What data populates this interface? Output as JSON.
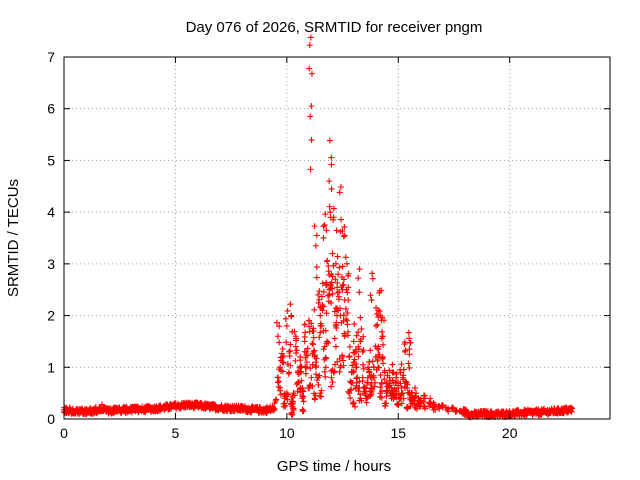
{
  "chart_data": {
    "type": "scatter",
    "title": "Day 076 of 2026, SRMTID for receiver pngm",
    "xlabel": "GPS time / hours",
    "ylabel": "SRMTID / TECUs",
    "xlim": [
      0,
      24.5
    ],
    "ylim": [
      0,
      7
    ],
    "x_ticks": [
      0,
      5,
      10,
      15,
      20
    ],
    "x_tick_labels": [
      "0",
      "5",
      "10",
      "15",
      "20"
    ],
    "y_ticks": [
      0,
      1,
      2,
      3,
      4,
      5,
      6,
      7
    ],
    "y_tick_labels": [
      "0",
      "1",
      "2",
      "3",
      "4",
      "5",
      "6",
      "7"
    ],
    "grid": true,
    "marker": "+",
    "series": [
      {
        "name": "pngm",
        "color": "#ff0000",
        "x": [
          0.0,
          0.1,
          0.2,
          0.3,
          0.4,
          0.5,
          0.6,
          0.7,
          0.8,
          1.0,
          1.2,
          1.4,
          1.6,
          1.7,
          1.8,
          2.0,
          2.2,
          2.4,
          2.6,
          2.8,
          3.0,
          3.2,
          3.4,
          3.6,
          3.8,
          4.0,
          4.2,
          4.4,
          4.6,
          4.8,
          5.0,
          5.2,
          5.4,
          5.6,
          5.8,
          6.0,
          6.2,
          6.4,
          6.6,
          6.8,
          7.0,
          7.2,
          7.4,
          7.6,
          7.8,
          8.0,
          8.2,
          8.4,
          8.6,
          8.8,
          9.0,
          9.2,
          9.4,
          9.5,
          9.6,
          9.7,
          9.8,
          9.9,
          10.0,
          10.1,
          10.2,
          10.3,
          10.4,
          10.5,
          10.6,
          10.7,
          10.8,
          10.9,
          11.0,
          11.05,
          11.1,
          11.15,
          11.2,
          11.3,
          11.4,
          11.5,
          11.6,
          11.7,
          11.8,
          11.9,
          12.0,
          12.05,
          12.1,
          12.2,
          12.3,
          12.4,
          12.5,
          12.6,
          12.7,
          12.8,
          12.9,
          13.0,
          13.1,
          13.2,
          13.3,
          13.4,
          13.5,
          13.6,
          13.7,
          13.8,
          13.9,
          14.0,
          14.1,
          14.2,
          14.3,
          14.4,
          14.5,
          14.6,
          14.7,
          14.8,
          14.9,
          15.0,
          15.1,
          15.2,
          15.3,
          15.4,
          15.5,
          15.6,
          15.7,
          15.8,
          15.9,
          16.0,
          16.2,
          16.4,
          16.6,
          16.8,
          17.0,
          17.2,
          17.4,
          17.6,
          17.8,
          18.4,
          18.6,
          18.8,
          19.0,
          19.2,
          19.4,
          19.6,
          19.8,
          20.0,
          20.2,
          20.4,
          20.6,
          20.8,
          21.0,
          21.2,
          21.4,
          21.6,
          21.8,
          22.0,
          22.2,
          22.4,
          22.6,
          22.8,
          9.6,
          9.8,
          10.0,
          10.2,
          10.4,
          10.6,
          10.8,
          11.0,
          11.2,
          11.4,
          11.6,
          11.8,
          12.0,
          12.2,
          12.4,
          12.6,
          12.8,
          13.0,
          13.2,
          13.4,
          13.6,
          13.8,
          14.0,
          14.2,
          14.4,
          14.6,
          14.8,
          15.0,
          15.2,
          15.4,
          15.6,
          15.8,
          16.0,
          16.2,
          16.4,
          16.6,
          9.7,
          9.9,
          10.1,
          10.3,
          10.5,
          10.7,
          10.9,
          11.1,
          11.3,
          11.5,
          11.7,
          11.9,
          12.1,
          12.3,
          12.5,
          12.7,
          12.9,
          13.1,
          13.3,
          13.5,
          13.7,
          13.9,
          14.1,
          14.3,
          14.5,
          14.7,
          14.9,
          15.1,
          15.3,
          15.5,
          10.25,
          10.75,
          11.25,
          11.75,
          12.25,
          12.75,
          13.25,
          13.75,
          14.25,
          14.75,
          11.5,
          11.8,
          12.0,
          12.2,
          12.5,
          13.1,
          14.1,
          15.5,
          13.8,
          12.6,
          10.2,
          11.3,
          14.3,
          11.9,
          12.4,
          10.6,
          13.0
        ],
        "y": [
          0.18,
          0.22,
          0.12,
          0.16,
          0.2,
          0.14,
          0.19,
          0.15,
          0.17,
          0.16,
          0.14,
          0.18,
          0.17,
          0.28,
          0.2,
          0.15,
          0.18,
          0.14,
          0.17,
          0.2,
          0.18,
          0.15,
          0.21,
          0.17,
          0.22,
          0.19,
          0.16,
          0.21,
          0.26,
          0.22,
          0.24,
          0.21,
          0.3,
          0.27,
          0.25,
          0.29,
          0.28,
          0.24,
          0.21,
          0.23,
          0.2,
          0.22,
          0.24,
          0.2,
          0.18,
          0.21,
          0.17,
          0.16,
          0.18,
          0.17,
          0.15,
          0.2,
          0.18,
          0.35,
          1.6,
          0.6,
          1.1,
          0.3,
          1.8,
          0.9,
          2.0,
          0.5,
          1.4,
          0.7,
          1.2,
          0.4,
          1.5,
          1.0,
          1.9,
          5.85,
          6.05,
          1.7,
          1.3,
          3.35,
          2.4,
          1.8,
          2.2,
          3.75,
          2.6,
          4.6,
          4.92,
          3.2,
          3.9,
          3.0,
          2.8,
          3.62,
          2.5,
          1.6,
          1.9,
          1.2,
          0.9,
          1.1,
          0.6,
          1.4,
          0.4,
          0.8,
          0.5,
          0.7,
          0.9,
          0.6,
          1.0,
          1.2,
          1.4,
          2.0,
          1.6,
          0.9,
          0.7,
          0.8,
          0.6,
          0.7,
          0.5,
          0.6,
          0.4,
          0.8,
          1.3,
          0.6,
          0.5,
          0.45,
          0.4,
          0.5,
          0.35,
          0.3,
          0.4,
          0.32,
          0.28,
          0.25,
          0.22,
          0.18,
          0.2,
          0.17,
          0.16,
          0.08,
          0.05,
          0.12,
          0.1,
          0.08,
          0.11,
          0.09,
          0.1,
          0.12,
          0.11,
          0.14,
          0.1,
          0.13,
          0.12,
          0.15,
          0.1,
          0.16,
          0.12,
          0.14,
          0.17,
          0.15,
          0.18,
          0.2,
          0.8,
          1.2,
          0.5,
          0.3,
          1.6,
          0.9,
          1.3,
          0.6,
          1.7,
          0.8,
          2.1,
          1.5,
          0.8,
          1.4,
          1.0,
          2.3,
          0.5,
          0.3,
          0.6,
          1.3,
          0.4,
          0.7,
          1.8,
          0.5,
          0.3,
          0.6,
          0.45,
          0.3,
          0.5,
          0.2,
          0.3,
          0.25,
          0.35,
          0.2,
          0.3,
          0.22,
          1.0,
          0.4,
          1.3,
          0.2,
          0.9,
          0.6,
          1.1,
          0.8,
          1.0,
          0.5,
          1.4,
          2.5,
          0.9,
          2.1,
          1.2,
          3.0,
          0.7,
          1.0,
          1.5,
          0.6,
          1.1,
          0.8,
          1.0,
          1.6,
          0.5,
          0.4,
          0.7,
          0.9,
          0.6,
          1.35,
          0.3,
          0.15,
          0.4,
          1.0,
          2.0,
          2.3,
          2.45,
          0.45,
          0.7,
          0.9,
          2.0,
          3.05,
          2.8,
          1.8,
          2.95,
          1.3,
          2.1,
          1.25,
          2.3,
          3.55,
          0.1,
          1.1,
          1.2,
          2.4,
          2.0,
          0.6,
          1.5
        ],
        "trace_x": [
          0.0,
          0.5,
          1.0,
          1.5,
          2.0,
          2.5,
          3.0,
          3.5,
          4.0,
          4.5,
          5.0,
          5.5,
          6.0,
          6.5,
          7.0,
          7.5,
          8.0,
          8.5,
          9.0,
          9.4,
          17.9,
          18.3,
          18.8,
          19.3,
          19.8,
          20.3,
          20.8,
          21.3,
          21.8,
          22.3,
          22.8
        ],
        "trace_y": [
          0.17,
          0.16,
          0.15,
          0.17,
          0.16,
          0.17,
          0.18,
          0.19,
          0.2,
          0.22,
          0.25,
          0.27,
          0.26,
          0.24,
          0.22,
          0.21,
          0.2,
          0.18,
          0.17,
          0.2,
          0.15,
          0.08,
          0.1,
          0.09,
          0.1,
          0.11,
          0.12,
          0.13,
          0.14,
          0.16,
          0.18
        ]
      }
    ]
  }
}
